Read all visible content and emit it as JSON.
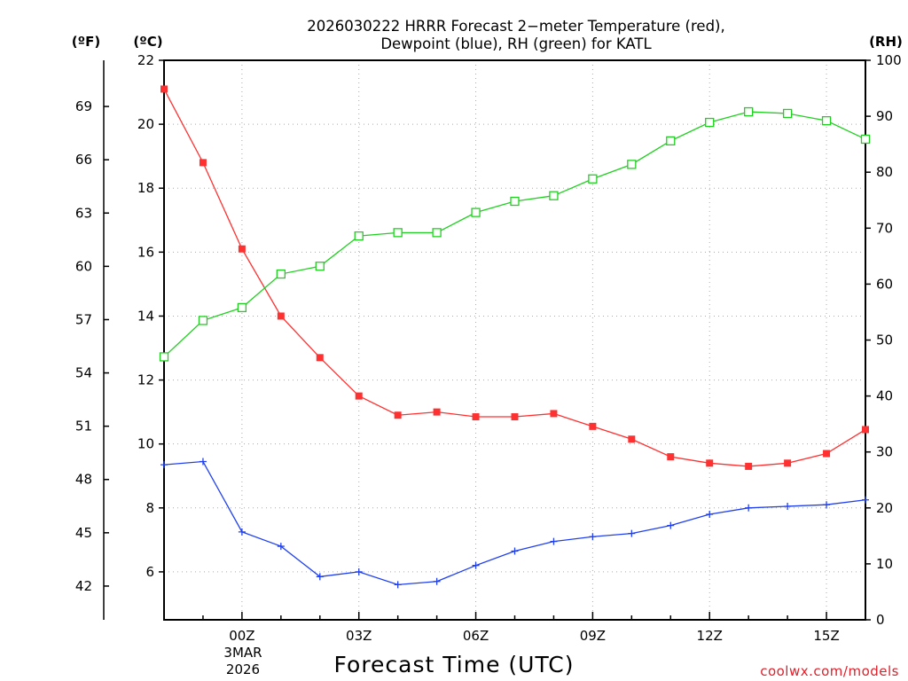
{
  "chart_data": {
    "type": "line",
    "title": {
      "line1": "2026030222 HRRR Forecast 2−meter Temperature (red),",
      "line2": "Dewpoint (blue), RH (green) for KATL"
    },
    "units": {
      "fahrenheit": "(ºF)",
      "celsius": "(ºC)",
      "rh": "(RH)"
    },
    "xlabel": "Forecast Time (UTC)",
    "x_ticks": [
      "00Z",
      "03Z",
      "06Z",
      "09Z",
      "12Z",
      "15Z"
    ],
    "x_date": {
      "day_month": "3MAR",
      "year": "2026"
    },
    "x_hours": [
      -2,
      -1,
      0,
      1,
      2,
      3,
      4,
      5,
      6,
      7,
      8,
      9,
      10,
      11,
      12,
      13,
      14,
      15,
      16
    ],
    "xlim": [
      -2,
      16
    ],
    "celsius_ticks": [
      "22",
      "20",
      "18",
      "16",
      "14",
      "12",
      "10",
      "8",
      "6"
    ],
    "celsius_lim": [
      4.5,
      22
    ],
    "fahrenheit_ticks": [
      "69",
      "66",
      "63",
      "60",
      "57",
      "54",
      "51",
      "48",
      "45",
      "42"
    ],
    "rh_ticks": [
      "100",
      "90",
      "80",
      "70",
      "60",
      "50",
      "40",
      "30",
      "20",
      "10",
      "0"
    ],
    "rh_lim": [
      0,
      100
    ],
    "series": [
      {
        "name": "Temperature",
        "color": "#ff3030",
        "marker": "filled-square",
        "axis": "celsius",
        "values": [
          21.1,
          18.8,
          16.1,
          14.0,
          12.7,
          11.5,
          10.9,
          11.0,
          10.85,
          10.85,
          10.95,
          10.55,
          10.15,
          9.6,
          9.4,
          9.3,
          9.4,
          9.7,
          10.45
        ]
      },
      {
        "name": "Dewpoint",
        "color": "#2040f0",
        "marker": "plus",
        "axis": "celsius",
        "values": [
          9.35,
          9.45,
          7.25,
          6.8,
          5.85,
          6.0,
          5.6,
          5.7,
          6.2,
          6.65,
          6.95,
          7.1,
          7.2,
          7.45,
          7.8,
          8.0,
          8.05,
          8.1,
          8.25
        ]
      },
      {
        "name": "RH",
        "color": "#20d020",
        "marker": "hollow-square",
        "axis": "rh",
        "values": [
          47,
          53.5,
          55.8,
          61.8,
          63.2,
          68.6,
          69.2,
          69.2,
          72.8,
          74.8,
          75.8,
          78.8,
          81.4,
          85.6,
          88.9,
          90.8,
          90.5,
          89.2,
          85.9
        ]
      }
    ],
    "grid": true
  },
  "credit": "coolwx.com/models"
}
